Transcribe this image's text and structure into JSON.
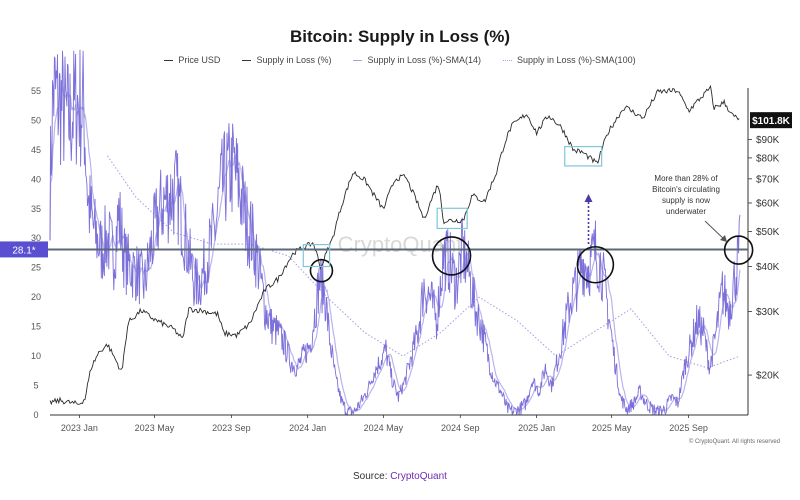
{
  "chart_data": {
    "type": "line",
    "title": "Bitcoin: Supply in Loss (%)",
    "legend": [
      {
        "name": "Price USD",
        "color": "#333333",
        "style": "solid"
      },
      {
        "name": "Supply in Loss (%)",
        "color": "#333333",
        "style": "solid"
      },
      {
        "name": "Supply in Loss (%)-SMA(14)",
        "color": "#a8a3e0",
        "style": "solid"
      },
      {
        "name": "Supply in Loss (%)-SMA(100)",
        "color": "#a8a3e0",
        "style": "dotted"
      }
    ],
    "x_ticks": [
      "2023 Jan",
      "2023 May",
      "2023 Sep",
      "2024 Jan",
      "2024 May",
      "2024 Sep",
      "2025 Jan",
      "2025 May",
      "2025 Sep"
    ],
    "x_domain": [
      "2022-11-15",
      "2025-12-05"
    ],
    "left_axis": {
      "ticks": [
        0,
        5,
        10,
        15,
        20,
        25,
        30,
        35,
        40,
        45,
        50,
        55
      ],
      "range": [
        0,
        55.5
      ]
    },
    "right_axis": {
      "ticks": [
        "$20K",
        "$30K",
        "$40K",
        "$50K",
        "$60K",
        "$70K",
        "$80K",
        "$90K",
        "$100K"
      ],
      "tick_values": [
        20000,
        30000,
        40000,
        50000,
        60000,
        70000,
        80000,
        90000,
        100000
      ],
      "scale": "log",
      "range": [
        15500,
        125000
      ]
    },
    "threshold": {
      "label": "28.1*",
      "value": 28.1
    },
    "last_price": {
      "label": "$101.8K",
      "value": 101800
    },
    "supply_in_loss": [
      [
        "2022-11-15",
        38
      ],
      [
        "2022-11-20",
        55
      ],
      [
        "2022-12-01",
        53
      ],
      [
        "2022-12-15",
        50
      ],
      [
        "2022-12-28",
        53
      ],
      [
        "2023-01-08",
        52
      ],
      [
        "2023-01-15",
        36
      ],
      [
        "2023-01-25",
        31
      ],
      [
        "2023-02-05",
        28
      ],
      [
        "2023-02-15",
        30
      ],
      [
        "2023-02-25",
        27
      ],
      [
        "2023-03-05",
        34
      ],
      [
        "2023-03-15",
        26
      ],
      [
        "2023-03-25",
        25
      ],
      [
        "2023-04-05",
        24
      ],
      [
        "2023-04-15",
        22
      ],
      [
        "2023-04-25",
        28
      ],
      [
        "2023-05-05",
        33
      ],
      [
        "2023-05-15",
        36
      ],
      [
        "2023-05-25",
        37
      ],
      [
        "2023-06-05",
        38
      ],
      [
        "2023-06-15",
        33
      ],
      [
        "2023-06-25",
        27
      ],
      [
        "2023-07-05",
        22
      ],
      [
        "2023-07-15",
        23
      ],
      [
        "2023-07-25",
        27
      ],
      [
        "2023-08-05",
        31
      ],
      [
        "2023-08-15",
        38
      ],
      [
        "2023-08-25",
        41
      ],
      [
        "2023-09-05",
        42
      ],
      [
        "2023-09-15",
        38
      ],
      [
        "2023-09-25",
        33
      ],
      [
        "2023-10-05",
        30
      ],
      [
        "2023-10-15",
        25
      ],
      [
        "2023-10-25",
        18
      ],
      [
        "2023-11-05",
        15
      ],
      [
        "2023-11-15",
        14
      ],
      [
        "2023-11-25",
        12
      ],
      [
        "2023-12-05",
        9
      ],
      [
        "2023-12-15",
        8
      ],
      [
        "2023-12-25",
        10
      ],
      [
        "2024-01-05",
        12
      ],
      [
        "2024-01-12",
        17
      ],
      [
        "2024-01-20",
        23
      ],
      [
        "2024-01-28",
        21
      ],
      [
        "2024-02-05",
        13
      ],
      [
        "2024-02-15",
        6
      ],
      [
        "2024-02-25",
        2
      ],
      [
        "2024-03-05",
        0.5
      ],
      [
        "2024-03-15",
        0.5
      ],
      [
        "2024-03-25",
        2
      ],
      [
        "2024-04-05",
        4
      ],
      [
        "2024-04-15",
        7
      ],
      [
        "2024-04-25",
        9
      ],
      [
        "2024-05-05",
        11
      ],
      [
        "2024-05-15",
        6
      ],
      [
        "2024-05-25",
        3
      ],
      [
        "2024-06-05",
        6
      ],
      [
        "2024-06-15",
        10
      ],
      [
        "2024-06-25",
        14
      ],
      [
        "2024-07-05",
        22
      ],
      [
        "2024-07-15",
        20
      ],
      [
        "2024-07-25",
        16
      ],
      [
        "2024-08-05",
        27
      ],
      [
        "2024-08-15",
        26
      ],
      [
        "2024-08-25",
        22
      ],
      [
        "2024-09-05",
        28
      ],
      [
        "2024-09-15",
        24
      ],
      [
        "2024-09-25",
        18
      ],
      [
        "2024-10-05",
        15
      ],
      [
        "2024-10-15",
        10
      ],
      [
        "2024-10-25",
        6
      ],
      [
        "2024-11-05",
        4
      ],
      [
        "2024-11-15",
        1
      ],
      [
        "2024-11-25",
        0.5
      ],
      [
        "2024-12-05",
        1
      ],
      [
        "2024-12-15",
        2
      ],
      [
        "2024-12-25",
        6
      ],
      [
        "2025-01-05",
        4
      ],
      [
        "2025-01-15",
        8
      ],
      [
        "2025-01-25",
        5
      ],
      [
        "2025-02-05",
        10
      ],
      [
        "2025-02-15",
        15
      ],
      [
        "2025-02-25",
        20
      ],
      [
        "2025-03-05",
        22
      ],
      [
        "2025-03-15",
        26
      ],
      [
        "2025-03-25",
        25
      ],
      [
        "2025-04-05",
        28
      ],
      [
        "2025-04-15",
        25
      ],
      [
        "2025-04-25",
        18
      ],
      [
        "2025-05-05",
        10
      ],
      [
        "2025-05-15",
        3
      ],
      [
        "2025-05-25",
        1
      ],
      [
        "2025-06-05",
        2
      ],
      [
        "2025-06-15",
        4
      ],
      [
        "2025-06-25",
        2
      ],
      [
        "2025-07-05",
        1
      ],
      [
        "2025-07-15",
        0.5
      ],
      [
        "2025-07-25",
        1
      ],
      [
        "2025-08-05",
        3
      ],
      [
        "2025-08-15",
        2
      ],
      [
        "2025-08-25",
        8
      ],
      [
        "2025-09-05",
        12
      ],
      [
        "2025-09-15",
        16
      ],
      [
        "2025-09-25",
        14
      ],
      [
        "2025-10-05",
        8
      ],
      [
        "2025-10-15",
        14
      ],
      [
        "2025-10-25",
        21
      ],
      [
        "2025-11-05",
        18
      ],
      [
        "2025-11-15",
        24
      ],
      [
        "2025-11-22",
        28.1
      ]
    ],
    "sma_100": [
      [
        "2023-02-15",
        44
      ],
      [
        "2023-04-01",
        37
      ],
      [
        "2023-06-01",
        31
      ],
      [
        "2023-08-01",
        29
      ],
      [
        "2023-10-01",
        29
      ],
      [
        "2023-12-01",
        27
      ],
      [
        "2024-02-01",
        20
      ],
      [
        "2024-04-01",
        14
      ],
      [
        "2024-06-01",
        10
      ],
      [
        "2024-08-01",
        14
      ],
      [
        "2024-10-01",
        20
      ],
      [
        "2024-12-01",
        16
      ],
      [
        "2025-02-01",
        10
      ],
      [
        "2025-04-01",
        14
      ],
      [
        "2025-06-01",
        18
      ],
      [
        "2025-08-01",
        10
      ],
      [
        "2025-10-01",
        8
      ],
      [
        "2025-11-22",
        10
      ]
    ],
    "price_usd": [
      [
        "2022-11-15",
        16800
      ],
      [
        "2022-12-01",
        17000
      ],
      [
        "2022-12-31",
        16600
      ],
      [
        "2023-01-10",
        17200
      ],
      [
        "2023-01-20",
        21000
      ],
      [
        "2023-02-01",
        23100
      ],
      [
        "2023-02-15",
        24300
      ],
      [
        "2023-03-10",
        20300
      ],
      [
        "2023-03-20",
        28000
      ],
      [
        "2023-04-10",
        30200
      ],
      [
        "2023-05-01",
        28500
      ],
      [
        "2023-06-01",
        26800
      ],
      [
        "2023-06-15",
        25100
      ],
      [
        "2023-06-25",
        30500
      ],
      [
        "2023-07-15",
        30200
      ],
      [
        "2023-08-10",
        29500
      ],
      [
        "2023-08-20",
        26100
      ],
      [
        "2023-09-10",
        25800
      ],
      [
        "2023-10-01",
        27800
      ],
      [
        "2023-10-25",
        34500
      ],
      [
        "2023-11-15",
        37000
      ],
      [
        "2023-12-10",
        43800
      ],
      [
        "2024-01-10",
        46500
      ],
      [
        "2024-01-22",
        39600
      ],
      [
        "2024-02-10",
        48000
      ],
      [
        "2024-02-28",
        62000
      ],
      [
        "2024-03-14",
        73000
      ],
      [
        "2024-04-01",
        69500
      ],
      [
        "2024-04-15",
        63500
      ],
      [
        "2024-05-01",
        57500
      ],
      [
        "2024-05-20",
        70000
      ],
      [
        "2024-06-05",
        71000
      ],
      [
        "2024-07-05",
        54000
      ],
      [
        "2024-07-28",
        68000
      ],
      [
        "2024-08-05",
        53500
      ],
      [
        "2024-09-06",
        53800
      ],
      [
        "2024-09-20",
        63000
      ],
      [
        "2024-10-10",
        60500
      ],
      [
        "2024-10-29",
        73000
      ],
      [
        "2024-11-12",
        89000
      ],
      [
        "2024-11-22",
        98000
      ],
      [
        "2024-12-16",
        106000
      ],
      [
        "2025-01-01",
        94000
      ],
      [
        "2025-01-20",
        105000
      ],
      [
        "2025-02-10",
        97000
      ],
      [
        "2025-03-01",
        84000
      ],
      [
        "2025-03-15",
        83000
      ],
      [
        "2025-04-08",
        77000
      ],
      [
        "2025-04-25",
        94000
      ],
      [
        "2025-05-22",
        111000
      ],
      [
        "2025-06-20",
        103000
      ],
      [
        "2025-07-14",
        122000
      ],
      [
        "2025-08-14",
        123000
      ],
      [
        "2025-09-01",
        108000
      ],
      [
        "2025-10-06",
        125000
      ],
      [
        "2025-10-11",
        110000
      ],
      [
        "2025-10-28",
        114000
      ],
      [
        "2025-11-10",
        105000
      ],
      [
        "2025-11-22",
        101800
      ]
    ],
    "annotations": [
      {
        "text": [
          "More than 28% of",
          "Bitcoin's circulating",
          "supply is now",
          "underwater"
        ]
      }
    ],
    "watermark": "CryptoQuant",
    "copyright": "© CryptoQuant. All rights reserved",
    "grid": false
  },
  "source": {
    "prefix": "Source: ",
    "link": "CryptoQuant"
  }
}
